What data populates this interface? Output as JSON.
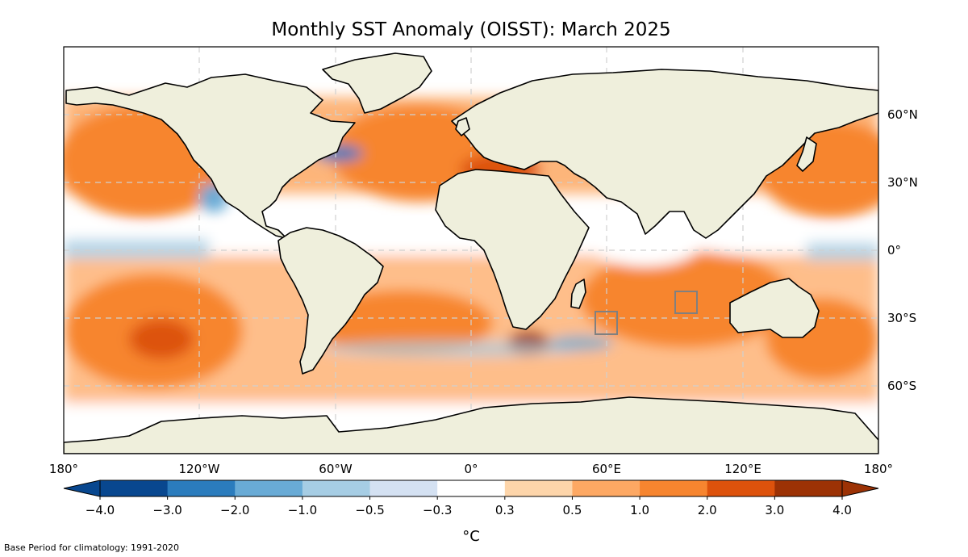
{
  "title": "Monthly SST Anomaly (OISST): March 2025",
  "lon_ticks": [
    "180°",
    "120°W",
    "60°W",
    "0°",
    "60°E",
    "120°E",
    "180°"
  ],
  "lat_ticks": [
    "60°N",
    "30°N",
    "0°",
    "30°S",
    "60°S"
  ],
  "colorbar": {
    "tick_labels": [
      "−4.0",
      "−3.0",
      "−2.0",
      "−1.0",
      "−0.5",
      "−0.3",
      "0.3",
      "0.5",
      "1.0",
      "2.0",
      "3.0",
      "4.0"
    ],
    "colors": [
      "#08478f",
      "#2b7cbd",
      "#69abd6",
      "#a6cde4",
      "#d4e1f2",
      "#ffffff",
      "#fdd5aa",
      "#fda863",
      "#f7852f",
      "#dd520c",
      "#9c3205"
    ],
    "under_color": "#08478f",
    "over_color": "#9c3205",
    "unit": "°C"
  },
  "colors": {
    "land": "#efefdc",
    "coast": "#000000",
    "grid": "#d0d0d0",
    "box": "#808080"
  },
  "footnote": "Base Period for climatology: 1991-2020"
}
